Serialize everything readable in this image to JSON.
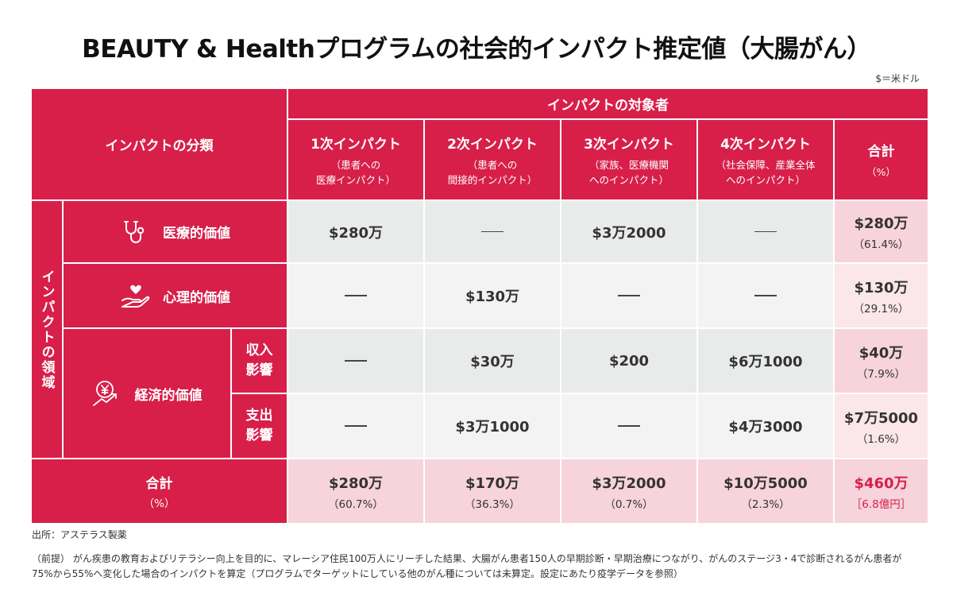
{
  "title": "BEAUTY & Healthプログラムの社会的インパクト推定値（大腸がん）",
  "unit_note": "$＝米ドル",
  "table": {
    "classification_label": "インパクトの分類",
    "target_label": "インパクトの対象者",
    "domain_label": "インパクトの領域",
    "columns": [
      {
        "title": "1次インパクト",
        "subtitle_line1": "（患者への",
        "subtitle_line2": "医療インパクト）"
      },
      {
        "title": "2次インパクト",
        "subtitle_line1": "（患者への",
        "subtitle_line2": "間接的インパクト）"
      },
      {
        "title": "3次インパクト",
        "subtitle_line1": "（家族、医療機関",
        "subtitle_line2": "へのインパクト）"
      },
      {
        "title": "4次インパクト",
        "subtitle_line1": "（社会保障、産業全体",
        "subtitle_line2": "へのインパクト）"
      }
    ],
    "total_col": {
      "title": "合計",
      "subtitle": "（%）"
    },
    "rows": {
      "medical": {
        "label": "医療的価値",
        "icon": "stethoscope-icon",
        "values": [
          "$280万",
          "",
          "$3万2000",
          ""
        ],
        "total": "$280万",
        "total_pct": "（61.4%）"
      },
      "psych": {
        "label": "心理的価値",
        "icon": "heart-hand-icon",
        "values": [
          "",
          "$130万",
          "",
          ""
        ],
        "total": "$130万",
        "total_pct": "（29.1%）"
      },
      "economic": {
        "label": "経済的価値",
        "icon": "yen-chart-icon",
        "income": {
          "label_line1": "収入",
          "label_line2": "影響",
          "values": [
            "",
            "$30万",
            "$200",
            "$6万1000"
          ],
          "total": "$40万",
          "total_pct": "（7.9%）"
        },
        "expense": {
          "label_line1": "支出",
          "label_line2": "影響",
          "values": [
            "",
            "$3万1000",
            "",
            "$4万3000"
          ],
          "total": "$7万5000",
          "total_pct": "（1.6%）"
        }
      }
    },
    "totals_row": {
      "label": "合計",
      "label_pct": "（%）",
      "cells": [
        {
          "value": "$280万",
          "pct": "（60.7%）"
        },
        {
          "value": "$170万",
          "pct": "（36.3%）"
        },
        {
          "value": "$3万2000",
          "pct": "（0.7%）"
        },
        {
          "value": "$10万5000",
          "pct": "（2.3%）"
        }
      ],
      "grand_value": "$460万",
      "grand_sub": "［6.8億円］"
    }
  },
  "source": "出所：アステラス製薬",
  "note": "（前提） がん疾患の教育およびリテラシー向上を目的に、マレーシア住民100万人にリーチした結果、大腸がん患者150人の早期診断・早期治療につながり、がんのステージ3・4で診断されるがん患者が75%から55%へ変化した場合のインパクトを算定（プログラムでターゲットにしている他のがん種については未算定。設定にあたり疫学データを参照）",
  "colors": {
    "accent": "#d71f4a",
    "gray_dark": "#e9eaea",
    "gray_light": "#f3f3f3",
    "pink_dark": "#f7d3db",
    "pink_light": "#fbe6ea"
  }
}
